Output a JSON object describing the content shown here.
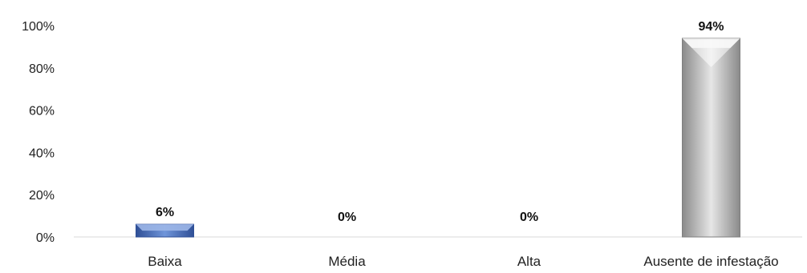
{
  "chart_data": {
    "type": "bar",
    "categories": [
      "Baixa",
      "Média",
      "Alta",
      "Ausente de infestação"
    ],
    "values": [
      6,
      0,
      0,
      94
    ],
    "data_labels": [
      "6%",
      "0%",
      "0%",
      "94%"
    ],
    "ylim": [
      0,
      100
    ],
    "yticks": [
      0,
      20,
      40,
      60,
      80,
      100
    ],
    "ytick_labels": [
      "0%",
      "20%",
      "40%",
      "60%",
      "80%",
      "100%"
    ],
    "title": "",
    "xlabel": "",
    "ylabel": "",
    "grid": false,
    "legend": "none",
    "colors": [
      "#4472C4",
      "#4472C4",
      "#4472C4",
      "#A6A6A6"
    ]
  }
}
